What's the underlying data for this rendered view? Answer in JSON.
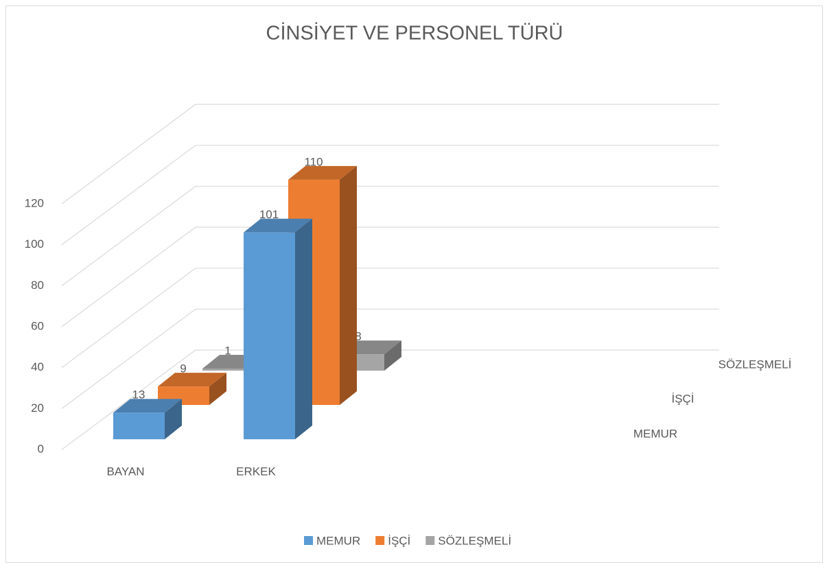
{
  "chart_data": {
    "type": "bar3d",
    "title": "CİNSİYET VE PERSONEL TÜRÜ",
    "categories": [
      "BAYAN",
      "ERKEK"
    ],
    "series": [
      {
        "name": "MEMUR",
        "color": "#5b9bd5",
        "values": [
          13,
          101
        ]
      },
      {
        "name": "İŞÇİ",
        "color": "#ed7d31",
        "values": [
          9,
          110
        ]
      },
      {
        "name": "SÖZLEŞMELİ",
        "color": "#a5a5a5",
        "values": [
          1,
          8
        ]
      }
    ],
    "ylim": [
      0,
      120
    ],
    "yticks": [
      0,
      20,
      40,
      60,
      80,
      100,
      120
    ],
    "grid": true,
    "legend": "bottom"
  }
}
